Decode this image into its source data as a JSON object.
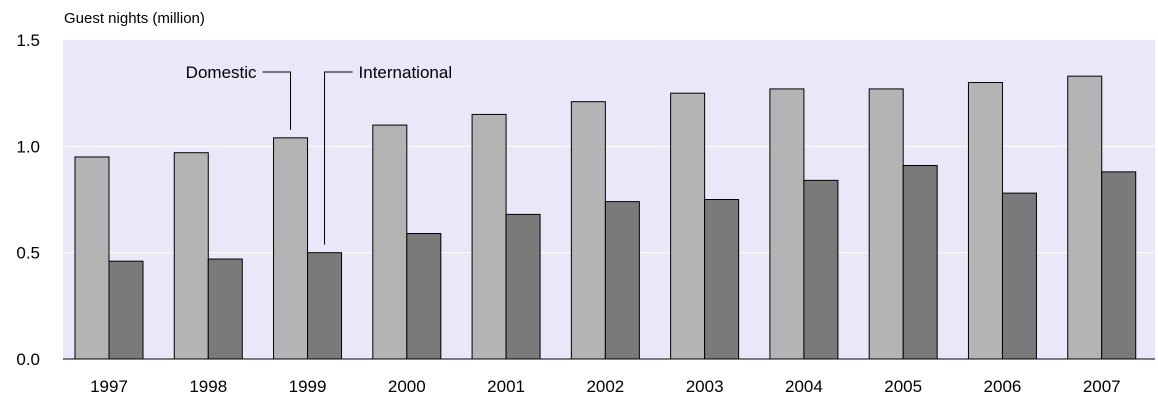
{
  "chart_data": {
    "type": "bar",
    "title": "",
    "ylabel": "Guest nights (million)",
    "xlabel": "",
    "ylim": [
      0,
      1.5
    ],
    "yticks": [
      "0.0",
      "0.5",
      "1.0",
      "1.5"
    ],
    "grid": true,
    "categories": [
      "1997",
      "1998",
      "1999",
      "2000",
      "2001",
      "2002",
      "2003",
      "2004",
      "2005",
      "2006",
      "2007"
    ],
    "series": [
      {
        "name": "Domestic",
        "color": "#b4b4b4",
        "values": [
          0.95,
          0.97,
          1.04,
          1.1,
          1.15,
          1.21,
          1.25,
          1.27,
          1.27,
          1.3,
          1.33
        ]
      },
      {
        "name": "International",
        "color": "#7a7a7a",
        "values": [
          0.46,
          0.47,
          0.5,
          0.59,
          0.68,
          0.74,
          0.75,
          0.84,
          0.91,
          0.78,
          0.88
        ]
      }
    ],
    "plot_background": "#e8e8f8",
    "legend": "inline-callouts"
  }
}
